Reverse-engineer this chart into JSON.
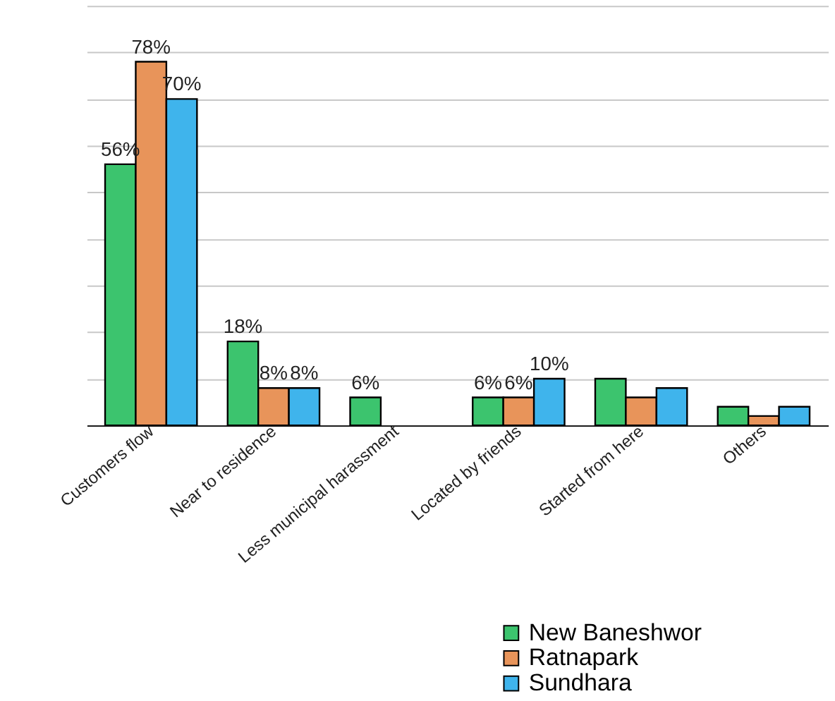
{
  "chart_data": {
    "type": "bar",
    "categories": [
      "Customers flow",
      "Near to residence",
      "Less municipal harassment",
      "Located by friends",
      "Started from here",
      "Others"
    ],
    "series": [
      {
        "name": "New Baneshwor",
        "color": "#3cc46e",
        "values": [
          56,
          18,
          6,
          6,
          10,
          4
        ],
        "value_labels": [
          "56%",
          "18%",
          "6%",
          "6%",
          null,
          null
        ]
      },
      {
        "name": "Ratnapark",
        "color": "#e8945a",
        "values": [
          78,
          8,
          null,
          6,
          6,
          2
        ],
        "value_labels": [
          "78%",
          "8%",
          null,
          "6%",
          null,
          null
        ]
      },
      {
        "name": "Sundhara",
        "color": "#3fb4ec",
        "values": [
          70,
          8,
          null,
          10,
          8,
          4
        ],
        "value_labels": [
          "70%",
          "8%",
          null,
          "10%",
          null,
          null
        ]
      }
    ],
    "ylim": [
      0,
      90
    ],
    "yticks": [
      0,
      10,
      20,
      30,
      40,
      50,
      60,
      70,
      80,
      90
    ],
    "grid": "y",
    "tick_labels": "x",
    "legend": "bottom right"
  }
}
